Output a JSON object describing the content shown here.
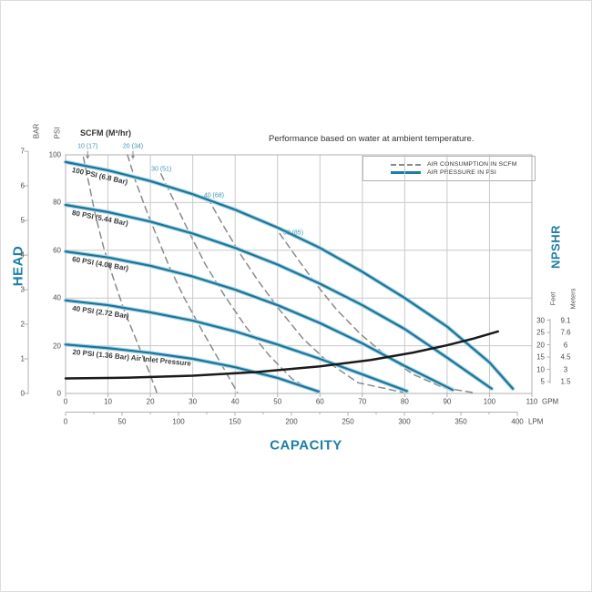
{
  "note": "Performance based on water at ambient temperature.",
  "legend": {
    "items": [
      {
        "label": "AIR CONSUMPTION IN SCFM",
        "style": "dashed",
        "color": "#8a8a8a"
      },
      {
        "label": "AIR PRESSURE IN PSI",
        "style": "solid",
        "color": "#1d7ea6"
      }
    ]
  },
  "axes": {
    "head_label": "HEAD",
    "capacity_label": "CAPACITY",
    "npshr_label": "NPSHR",
    "bar_word": "BAR",
    "psi_word": "PSI",
    "feet_word": "Feet",
    "meters_word": "Meters",
    "scfm_header": "SCFM (M³/hr)",
    "gpm_unit": "GPM",
    "lpm_unit": "LPM"
  },
  "colors": {
    "accent_teal": "#1b7fa8",
    "pressure_curve": "#1d7498",
    "pressure_halo": "#a6d6e7",
    "consumption_curve": "#8a8a8a",
    "npshr_curve": "#1a1a1a",
    "grid": "#c9c9c9",
    "border": "#b0b0b0"
  },
  "chart_data": {
    "type": "line",
    "title": "Performance based on water at ambient temperature.",
    "xlabel": "CAPACITY",
    "ylabel_left": "HEAD",
    "ylabel_right": "NPSHR",
    "grid": true,
    "legend_position": "top-right",
    "x_axis_gpm": {
      "unit": "GPM",
      "range": [
        0,
        110
      ],
      "ticks": [
        0,
        10,
        20,
        30,
        40,
        50,
        60,
        70,
        80,
        90,
        100,
        110
      ]
    },
    "x_axis_lpm": {
      "unit": "LPM",
      "range": [
        0,
        400
      ],
      "ticks": [
        0,
        50,
        100,
        150,
        200,
        250,
        300,
        350,
        400
      ],
      "minor_step": 25
    },
    "y_axis_bar": {
      "unit": "BAR",
      "range": [
        0,
        7
      ],
      "ticks": [
        0,
        1,
        2,
        3,
        4,
        5,
        6,
        7
      ]
    },
    "y_axis_psi": {
      "unit": "PSI",
      "range": [
        0,
        100
      ],
      "ticks": [
        0,
        20,
        40,
        60,
        80,
        100
      ]
    },
    "y_axis_right_feet": {
      "unit": "Feet",
      "ticks": [
        30,
        25,
        20,
        15,
        10,
        5
      ]
    },
    "y_axis_right_meters": {
      "unit": "Meters",
      "ticks": [
        "9.1",
        "7.6",
        "6",
        "4.5",
        "3",
        "1.5"
      ]
    },
    "air_pressure_curves": [
      {
        "name": "100psi",
        "label": "100 PSI (6.8 Bar)",
        "points": [
          [
            0,
            97
          ],
          [
            10,
            93.5
          ],
          [
            20,
            89
          ],
          [
            30,
            83.5
          ],
          [
            40,
            77
          ],
          [
            50,
            69.5
          ],
          [
            60,
            61
          ],
          [
            70,
            51
          ],
          [
            80,
            40
          ],
          [
            90,
            28
          ],
          [
            100,
            13
          ],
          [
            105.5,
            2
          ]
        ]
      },
      {
        "name": "80psi",
        "label": "80 PSI (5.44 Bar)",
        "points": [
          [
            0,
            79
          ],
          [
            10,
            76
          ],
          [
            20,
            72
          ],
          [
            30,
            67
          ],
          [
            40,
            61
          ],
          [
            50,
            54
          ],
          [
            60,
            46
          ],
          [
            70,
            37
          ],
          [
            80,
            27
          ],
          [
            90,
            15
          ],
          [
            100.5,
            2
          ]
        ]
      },
      {
        "name": "60psi",
        "label": "60 PSI (4.08 Bar)",
        "points": [
          [
            0,
            59.5
          ],
          [
            10,
            57
          ],
          [
            20,
            53.5
          ],
          [
            30,
            49
          ],
          [
            40,
            43.5
          ],
          [
            50,
            37
          ],
          [
            60,
            29.5
          ],
          [
            70,
            21
          ],
          [
            80,
            11.5
          ],
          [
            91.3,
            1.5
          ]
        ]
      },
      {
        "name": "40psi",
        "label": "40 PSI (2.72 Bar)",
        "points": [
          [
            0,
            39
          ],
          [
            10,
            37
          ],
          [
            20,
            34
          ],
          [
            30,
            30.5
          ],
          [
            40,
            26
          ],
          [
            50,
            20.5
          ],
          [
            60,
            14.5
          ],
          [
            70,
            8
          ],
          [
            80.5,
            1
          ]
        ]
      },
      {
        "name": "20psi",
        "label": "20 PSI (1.36 Bar) Air Inlet Pressure",
        "points": [
          [
            0,
            20.5
          ],
          [
            10,
            19
          ],
          [
            20,
            17
          ],
          [
            30,
            14.5
          ],
          [
            40,
            11
          ],
          [
            50,
            6.5
          ],
          [
            59.7,
            0.8
          ]
        ]
      }
    ],
    "air_consumption_curves": [
      {
        "name": "10scfm",
        "label": "10 (17)",
        "label_pos": [
          5.2,
          103.5
        ],
        "arrow": true,
        "points": [
          [
            4.2,
            99
          ],
          [
            5.5,
            88
          ],
          [
            7,
            75
          ],
          [
            9,
            61
          ],
          [
            11.5,
            47
          ],
          [
            14,
            34
          ],
          [
            17,
            21
          ],
          [
            19.5,
            10
          ],
          [
            21.5,
            0.5
          ]
        ]
      },
      {
        "name": "20scfm",
        "label": "20 (34)",
        "label_pos": [
          15.9,
          103.5
        ],
        "arrow": true,
        "points": [
          [
            14.6,
            100
          ],
          [
            16.5,
            89
          ],
          [
            19,
            77
          ],
          [
            21.5,
            66
          ],
          [
            24.5,
            53
          ],
          [
            28,
            40
          ],
          [
            32,
            27
          ],
          [
            36.5,
            13
          ],
          [
            40.5,
            0.5
          ]
        ]
      },
      {
        "name": "30scfm",
        "label": "30 (51)",
        "label_pos": [
          22.6,
          94
        ],
        "arrow": false,
        "points": [
          [
            22.5,
            92
          ],
          [
            25.5,
            81
          ],
          [
            29,
            68
          ],
          [
            33,
            54
          ],
          [
            37.5,
            41
          ],
          [
            42.5,
            28
          ],
          [
            48,
            16
          ],
          [
            53.5,
            6
          ],
          [
            59,
            0.5
          ]
        ]
      },
      {
        "name": "40scfm",
        "label": "40 (68)",
        "label_pos": [
          35,
          83
        ],
        "arrow": false,
        "points": [
          [
            33.5,
            82
          ],
          [
            37,
            71
          ],
          [
            41,
            59
          ],
          [
            45.5,
            47
          ],
          [
            50.5,
            35
          ],
          [
            56,
            23
          ],
          [
            62,
            13
          ],
          [
            69,
            4.5
          ],
          [
            79.5,
            0.5
          ]
        ]
      },
      {
        "name": "50scfm",
        "label": "50 (85)",
        "label_pos": [
          53.7,
          67
        ],
        "arrow": false,
        "points": [
          [
            50.5,
            67
          ],
          [
            54.5,
            57
          ],
          [
            59,
            46
          ],
          [
            64,
            35
          ],
          [
            69.5,
            25
          ],
          [
            75.5,
            16
          ],
          [
            82,
            8
          ],
          [
            89,
            2.5
          ],
          [
            96,
            0.4
          ]
        ]
      }
    ],
    "npshr_curve": {
      "name": "npshr",
      "unit": "feet",
      "points_gpm_feet": [
        [
          0,
          6.3
        ],
        [
          15,
          6.6
        ],
        [
          30,
          7.4
        ],
        [
          45,
          8.9
        ],
        [
          60,
          11.2
        ],
        [
          72,
          13.8
        ],
        [
          82,
          16.8
        ],
        [
          90,
          19.8
        ],
        [
          96,
          22.4
        ],
        [
          102,
          25.4
        ]
      ]
    }
  }
}
